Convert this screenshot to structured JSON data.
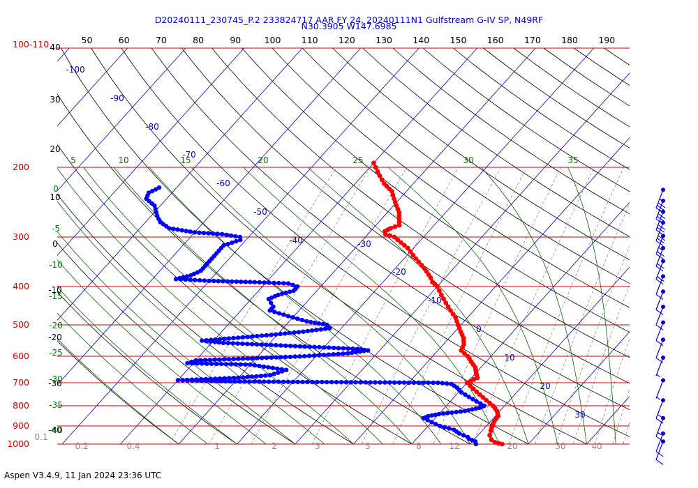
{
  "header": {
    "line1": "D20240111_230745_P.2 233824717 AAR FY 24, 20240111N1 Gulfstream G-IV SP, N49RF",
    "line2": "N30.3905 W147.6985"
  },
  "footer": {
    "version": "Aspen V3.4.9, 11 Jan 2024  23:36 UTC"
  },
  "colors": {
    "title": "#0000cc",
    "temperature": "#ff0000",
    "dewpoint": "#0000ff",
    "isobar": "#cc0000",
    "isotherm": "#0000cc",
    "mixing_ratio": "#808080",
    "dry_adiabat": "#000000",
    "moist_adiabat": "#006600",
    "wind": "#0000cc"
  },
  "chart_data": {
    "type": "line",
    "subtype": "skew-t log-p diagram",
    "pressure_axis_labels": [
      "100",
      "200",
      "300",
      "400",
      "500",
      "600",
      "700",
      "800",
      "900",
      "1000"
    ],
    "pressure_corner_label": "100-110",
    "top_axis_labels": [
      "50",
      "60",
      "70",
      "80",
      "90",
      "100",
      "110",
      "120",
      "130",
      "140",
      "150",
      "160",
      "170",
      "180",
      "190"
    ],
    "left_black_labels": [
      "40",
      "30",
      "20",
      "10",
      "0",
      "-10",
      "-20",
      "-30",
      "-40"
    ],
    "left_green_labels": [
      "0",
      "-5",
      "-10",
      "-15",
      "-20",
      "-25",
      "-30",
      "-35",
      "-40"
    ],
    "moist_top_labels": [
      "5",
      "10",
      "15",
      "20",
      "25",
      "30",
      "35"
    ],
    "isotherm_labels": [
      "-100",
      "-90",
      "-80",
      "-70",
      "-60",
      "-50",
      "-40",
      "-30",
      "-20",
      "-10",
      "0",
      "10",
      "20",
      "30"
    ],
    "mixing_ratio_labels": [
      "0.1",
      "0.2",
      "0.4",
      "1",
      "2",
      "3",
      "5",
      "8",
      "12",
      "20",
      "30",
      "40"
    ],
    "series": [
      {
        "name": "Temperature",
        "points": [
          [
            1000,
            15.5
          ],
          [
            990,
            14.0
          ],
          [
            975,
            13.0
          ],
          [
            950,
            12.0
          ],
          [
            925,
            11.5
          ],
          [
            900,
            11.0
          ],
          [
            875,
            10.6
          ],
          [
            850,
            10.5
          ],
          [
            825,
            9.5
          ],
          [
            800,
            8.0
          ],
          [
            775,
            6.0
          ],
          [
            750,
            4.0
          ],
          [
            725,
            2.0
          ],
          [
            700,
            0.0
          ],
          [
            680,
            1.0
          ],
          [
            660,
            0.0
          ],
          [
            640,
            -1.0
          ],
          [
            620,
            -2.5
          ],
          [
            600,
            -4.0
          ],
          [
            580,
            -6.0
          ],
          [
            560,
            -6.5
          ],
          [
            540,
            -7.5
          ],
          [
            520,
            -9.0
          ],
          [
            500,
            -10.5
          ],
          [
            480,
            -12.0
          ],
          [
            460,
            -14.0
          ],
          [
            440,
            -16.0
          ],
          [
            420,
            -18.0
          ],
          [
            400,
            -20.0
          ],
          [
            390,
            -21.5
          ],
          [
            380,
            -22.5
          ],
          [
            360,
            -25.0
          ],
          [
            340,
            -28.0
          ],
          [
            320,
            -31.0
          ],
          [
            300,
            -35.0
          ],
          [
            295,
            -37.0
          ],
          [
            290,
            -37.5
          ],
          [
            285,
            -37.0
          ],
          [
            280,
            -36.0
          ],
          [
            270,
            -37.0
          ],
          [
            260,
            -38.0
          ],
          [
            250,
            -39.5
          ],
          [
            240,
            -41.0
          ],
          [
            230,
            -42.5
          ],
          [
            220,
            -45.0
          ],
          [
            210,
            -47.0
          ],
          [
            200,
            -49.0
          ],
          [
            195,
            -50.0
          ]
        ]
      },
      {
        "name": "Dewpoint",
        "points": [
          [
            1000,
            11.0
          ],
          [
            985,
            10.5
          ],
          [
            970,
            9.0
          ],
          [
            960,
            8.5
          ],
          [
            940,
            6.5
          ],
          [
            920,
            5.0
          ],
          [
            900,
            2.0
          ],
          [
            880,
            0.0
          ],
          [
            860,
            -2.0
          ],
          [
            850,
            -1.5
          ],
          [
            840,
            0.0
          ],
          [
            825,
            4.0
          ],
          [
            810,
            6.0
          ],
          [
            800,
            6.5
          ],
          [
            780,
            4.5
          ],
          [
            760,
            2.5
          ],
          [
            740,
            0.5
          ],
          [
            720,
            -1.0
          ],
          [
            705,
            -2.5
          ],
          [
            700,
            -5.0
          ],
          [
            698,
            -20.0
          ],
          [
            695,
            -40.0
          ],
          [
            690,
            -50.0
          ],
          [
            680,
            -40.0
          ],
          [
            670,
            -35.0
          ],
          [
            650,
            -33.0
          ],
          [
            630,
            -40.0
          ],
          [
            625,
            -51.0
          ],
          [
            615,
            -50.0
          ],
          [
            600,
            -32.0
          ],
          [
            590,
            -25.0
          ],
          [
            580,
            -22.0
          ],
          [
            575,
            -24.0
          ],
          [
            565,
            -36.0
          ],
          [
            555,
            -48.0
          ],
          [
            548,
            -52.0
          ],
          [
            540,
            -47.0
          ],
          [
            530,
            -41.0
          ],
          [
            520,
            -36.0
          ],
          [
            510,
            -32.0
          ],
          [
            500,
            -33.0
          ],
          [
            490,
            -37.0
          ],
          [
            475,
            -41.0
          ],
          [
            460,
            -45.0
          ],
          [
            450,
            -45.0
          ],
          [
            440,
            -46.0
          ],
          [
            430,
            -47.0
          ],
          [
            420,
            -46.0
          ],
          [
            410,
            -44.0
          ],
          [
            400,
            -44.0
          ],
          [
            393,
            -46.0
          ],
          [
            390,
            -52.0
          ],
          [
            387,
            -60.0
          ],
          [
            383,
            -66.0
          ],
          [
            375,
            -64.0
          ],
          [
            365,
            -63.0
          ],
          [
            355,
            -63.0
          ],
          [
            345,
            -63.0
          ],
          [
            330,
            -63.0
          ],
          [
            315,
            -63.0
          ],
          [
            305,
            -61.0
          ],
          [
            300,
            -61.5
          ],
          [
            295,
            -65.0
          ],
          [
            292,
            -70.0
          ],
          [
            285,
            -75.0
          ],
          [
            275,
            -77.5
          ],
          [
            265,
            -79.0
          ],
          [
            250,
            -81.0
          ],
          [
            240,
            -83.5
          ],
          [
            232,
            -84.0
          ],
          [
            225,
            -83.0
          ]
        ]
      }
    ],
    "wind_barbs": [
      {
        "p": 228,
        "kts": 35
      },
      {
        "p": 243,
        "kts": 35
      },
      {
        "p": 259,
        "kts": 35
      },
      {
        "p": 276,
        "kts": 30
      },
      {
        "p": 298,
        "kts": 25
      },
      {
        "p": 320,
        "kts": 20
      },
      {
        "p": 345,
        "kts": 20
      },
      {
        "p": 377,
        "kts": 10
      },
      {
        "p": 412,
        "kts": 10
      },
      {
        "p": 450,
        "kts": 10
      },
      {
        "p": 493,
        "kts": 10
      },
      {
        "p": 545,
        "kts": 10
      },
      {
        "p": 605,
        "kts": 5
      },
      {
        "p": 690,
        "kts": 5
      },
      {
        "p": 775,
        "kts": 15
      },
      {
        "p": 860,
        "kts": 15
      },
      {
        "p": 940,
        "kts": 10
      },
      {
        "p": 985,
        "kts": 10
      }
    ],
    "xlim": [
      -40,
      50
    ],
    "ylim": [
      1000,
      100
    ],
    "grid": true
  }
}
